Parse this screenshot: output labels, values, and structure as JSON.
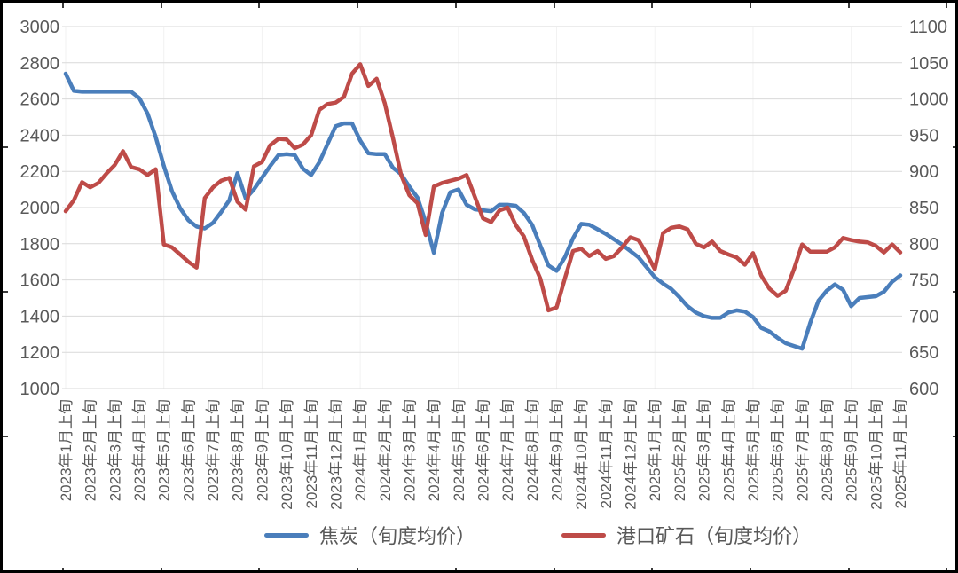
{
  "page": {
    "background": "#ffffff",
    "frame_border_color": "#000000",
    "text_color": "#595959",
    "gridline_color": "#d9d9d9",
    "minor_vertical_gridline_color": "#f2f2f2"
  },
  "chart_data": {
    "type": "line",
    "title": "",
    "grid": {
      "horizontal": true,
      "vertical": false,
      "legend_position": "bottom"
    },
    "x_axis": {
      "start": "2023年1月上旬",
      "end": "2025年11月上旬",
      "periods_per_month": 3,
      "period_names": [
        "上旬",
        "中旬",
        "下旬"
      ],
      "tick_labels": [
        "2023年1月上旬",
        "2023年2月上旬",
        "2023年3月上旬",
        "2023年4月上旬",
        "2023年5月上旬",
        "2023年6月上旬",
        "2023年7月上旬",
        "2023年8月上旬",
        "2023年9月上旬",
        "2023年10月上旬",
        "2023年11月上旬",
        "2023年12月上旬",
        "2024年1月上旬",
        "2024年2月上旬",
        "2024年3月上旬",
        "2024年4月上旬",
        "2024年5月上旬",
        "2024年6月上旬",
        "2024年7月上旬",
        "2024年8月上旬",
        "2024年9月上旬",
        "2024年10月上旬",
        "2024年11月上旬",
        "2024年12月上旬",
        "2025年1月上旬",
        "2025年2月上旬",
        "2025年3月上旬",
        "2025年4月上旬",
        "2025年5月上旬",
        "2025年6月上旬",
        "2025年7月上旬",
        "2025年8月上旬",
        "2025年9月上旬",
        "2025年10月上旬",
        "2025年11月上旬"
      ]
    },
    "y_axis_left": {
      "min": 1000,
      "max": 3000,
      "step": 200,
      "tick_labels": [
        "3000",
        "2800",
        "2600",
        "2400",
        "2200",
        "2000",
        "1800",
        "1600",
        "1400",
        "1200",
        "1000"
      ]
    },
    "y_axis_right": {
      "min": 600,
      "max": 1100,
      "step": 50,
      "tick_labels": [
        "1100",
        "1050",
        "1000",
        "950",
        "900",
        "850",
        "800",
        "750",
        "700",
        "650",
        "600"
      ]
    },
    "series": [
      {
        "name": "焦炭（旬度均价）",
        "axis": "left",
        "color": "#4a7ebb",
        "values": [
          2740,
          2645,
          2640,
          2640,
          2640,
          2640,
          2640,
          2640,
          2640,
          2605,
          2520,
          2390,
          2230,
          2090,
          1995,
          1930,
          1895,
          1885,
          1915,
          1975,
          2040,
          2190,
          2050,
          2100,
          2165,
          2230,
          2290,
          2295,
          2290,
          2215,
          2180,
          2250,
          2350,
          2450,
          2465,
          2465,
          2370,
          2300,
          2295,
          2295,
          2220,
          2185,
          2115,
          2055,
          1920,
          1750,
          1970,
          2085,
          2100,
          2015,
          1990,
          1985,
          1980,
          2015,
          2015,
          2010,
          1970,
          1905,
          1790,
          1680,
          1650,
          1725,
          1830,
          1910,
          1905,
          1880,
          1855,
          1825,
          1795,
          1760,
          1725,
          1670,
          1615,
          1580,
          1550,
          1505,
          1455,
          1420,
          1400,
          1390,
          1390,
          1420,
          1432,
          1425,
          1395,
          1335,
          1315,
          1280,
          1250,
          1235,
          1220,
          1364,
          1485,
          1540,
          1575,
          1545,
          1455,
          1500,
          1505,
          1510,
          1535,
          1590,
          1625
        ]
      },
      {
        "name": "港口矿石（旬度均价）",
        "axis": "right",
        "color": "#be4b48",
        "values": [
          845,
          860,
          885,
          878,
          884,
          897,
          909,
          928,
          906,
          903,
          895,
          903,
          799,
          795,
          785,
          775,
          767,
          863,
          878,
          887,
          891,
          858,
          847,
          907,
          913,
          936,
          945,
          944,
          932,
          937,
          950,
          985,
          993,
          995,
          1003,
          1035,
          1048,
          1018,
          1028,
          994,
          946,
          895,
          867,
          856,
          812,
          879,
          884,
          887,
          890,
          895,
          865,
          835,
          830,
          846,
          850,
          826,
          810,
          778,
          752,
          708,
          712,
          752,
          790,
          793,
          783,
          790,
          779,
          783,
          795,
          809,
          805,
          786,
          765,
          815,
          822,
          824,
          820,
          800,
          795,
          803,
          790,
          785,
          781,
          771,
          787,
          756,
          738,
          728,
          735,
          765,
          799,
          789,
          789,
          789,
          795,
          808,
          805,
          803,
          802,
          797,
          788,
          799,
          788
        ]
      }
    ],
    "legend": {
      "items": [
        "焦炭（旬度均价）",
        "港口矿石（旬度均价）"
      ]
    }
  }
}
